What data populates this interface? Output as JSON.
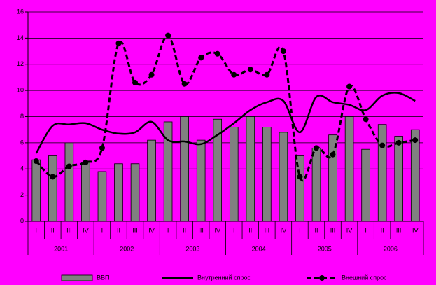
{
  "chart_data": {
    "type": "bar-line",
    "categories": [
      "I",
      "II",
      "III",
      "IV",
      "I",
      "II",
      "III",
      "IV",
      "I",
      "II",
      "III",
      "IV",
      "I",
      "II",
      "III",
      "IV",
      "I",
      "II",
      "III",
      "IV",
      "I",
      "II",
      "III",
      "IV"
    ],
    "years": [
      "2001",
      "2002",
      "2003",
      "2004",
      "2005",
      "2006"
    ],
    "ylim": [
      0,
      16
    ],
    "yticks": [
      0,
      2,
      4,
      6,
      8,
      10,
      12,
      14,
      16
    ],
    "grid": true,
    "series": [
      {
        "name": "ВВП",
        "kind": "bar",
        "color": "#808080",
        "values": [
          4.7,
          5.0,
          6.0,
          4.5,
          3.8,
          4.4,
          4.4,
          6.2,
          7.6,
          8.0,
          6.2,
          7.8,
          7.2,
          8.0,
          7.2,
          6.8,
          5.0,
          5.6,
          6.6,
          8.0,
          5.5,
          7.4,
          6.5,
          7.0
        ]
      },
      {
        "name": "Внутренний спрос",
        "kind": "line",
        "color": "#000000",
        "values": [
          5.2,
          7.3,
          7.4,
          7.5,
          7.0,
          6.7,
          6.8,
          7.6,
          6.2,
          6.1,
          5.9,
          6.6,
          7.5,
          8.5,
          9.1,
          9.2,
          6.8,
          9.5,
          9.1,
          8.9,
          8.5,
          9.6,
          9.8,
          9.2
        ]
      },
      {
        "name": "Внешний спрос",
        "kind": "dashed",
        "color": "#000000",
        "values": [
          4.6,
          3.4,
          4.2,
          4.5,
          5.6,
          13.6,
          10.6,
          11.2,
          14.2,
          10.5,
          12.5,
          12.8,
          11.2,
          11.6,
          11.2,
          13.0,
          3.4,
          5.6,
          5.1,
          10.3,
          7.8,
          5.8,
          6.0,
          6.2
        ]
      }
    ]
  }
}
